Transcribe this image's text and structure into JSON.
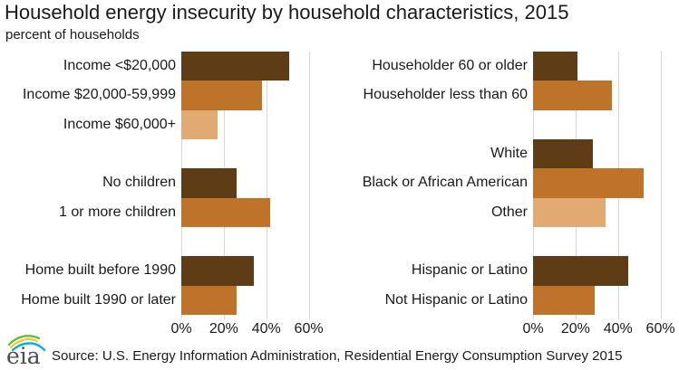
{
  "header": {
    "title": "Household energy insecurity by household characteristics, 2015",
    "subtitle": "percent of households"
  },
  "footer": {
    "logo_text": "eia",
    "source": "Source: U.S. Energy Information Administration, Residential Energy Consumption Survey 2015"
  },
  "palette": {
    "dark_brown": "#5E3C15",
    "orange": "#BF7329",
    "tan": "#E0AA72",
    "gridline": "#D6D6D6",
    "text": "#1A1A1A",
    "logo_text": "#4D4D4D",
    "logo_green": "#6CB33F",
    "logo_yellow": "#E8D21F",
    "logo_blue": "#00AEEF"
  },
  "chart_data": {
    "type": "bar",
    "orientation": "horizontal",
    "title": "Household energy insecurity by household characteristics, 2015",
    "units": "percent of households",
    "xlim": [
      0,
      70
    ],
    "x_tick_values": [
      0,
      20,
      40,
      60
    ],
    "x_tick_labels": [
      "0%",
      "20%",
      "40%",
      "60%"
    ],
    "grid": true,
    "legend": "none",
    "panels": [
      {
        "name": "left",
        "rows": [
          {
            "label": "Income <$20,000",
            "value": 51,
            "color": "dark_brown"
          },
          {
            "label": "Income $20,000-59,999",
            "value": 38,
            "color": "orange"
          },
          {
            "label": "Income $60,000+",
            "value": 17,
            "color": "tan"
          },
          {
            "spacer": true
          },
          {
            "label": "No children",
            "value": 26,
            "color": "dark_brown"
          },
          {
            "label": "1 or more children",
            "value": 42,
            "color": "orange"
          },
          {
            "spacer": true
          },
          {
            "label": "Home built before 1990",
            "value": 34,
            "color": "dark_brown"
          },
          {
            "label": "Home built 1990 or later",
            "value": 26,
            "color": "orange"
          }
        ]
      },
      {
        "name": "right",
        "rows": [
          {
            "label": "Householder 60 or older",
            "value": 21,
            "color": "dark_brown"
          },
          {
            "label": "Householder less than 60",
            "value": 37,
            "color": "orange"
          },
          {
            "spacer": true
          },
          {
            "label": "White",
            "value": 28,
            "color": "dark_brown"
          },
          {
            "label": "Black or African American",
            "value": 52,
            "color": "orange"
          },
          {
            "label": "Other",
            "value": 34,
            "color": "tan"
          },
          {
            "spacer": true
          },
          {
            "label": "Hispanic or Latino",
            "value": 45,
            "color": "dark_brown"
          },
          {
            "label": "Not Hispanic or Latino",
            "value": 29,
            "color": "orange"
          }
        ]
      }
    ]
  }
}
